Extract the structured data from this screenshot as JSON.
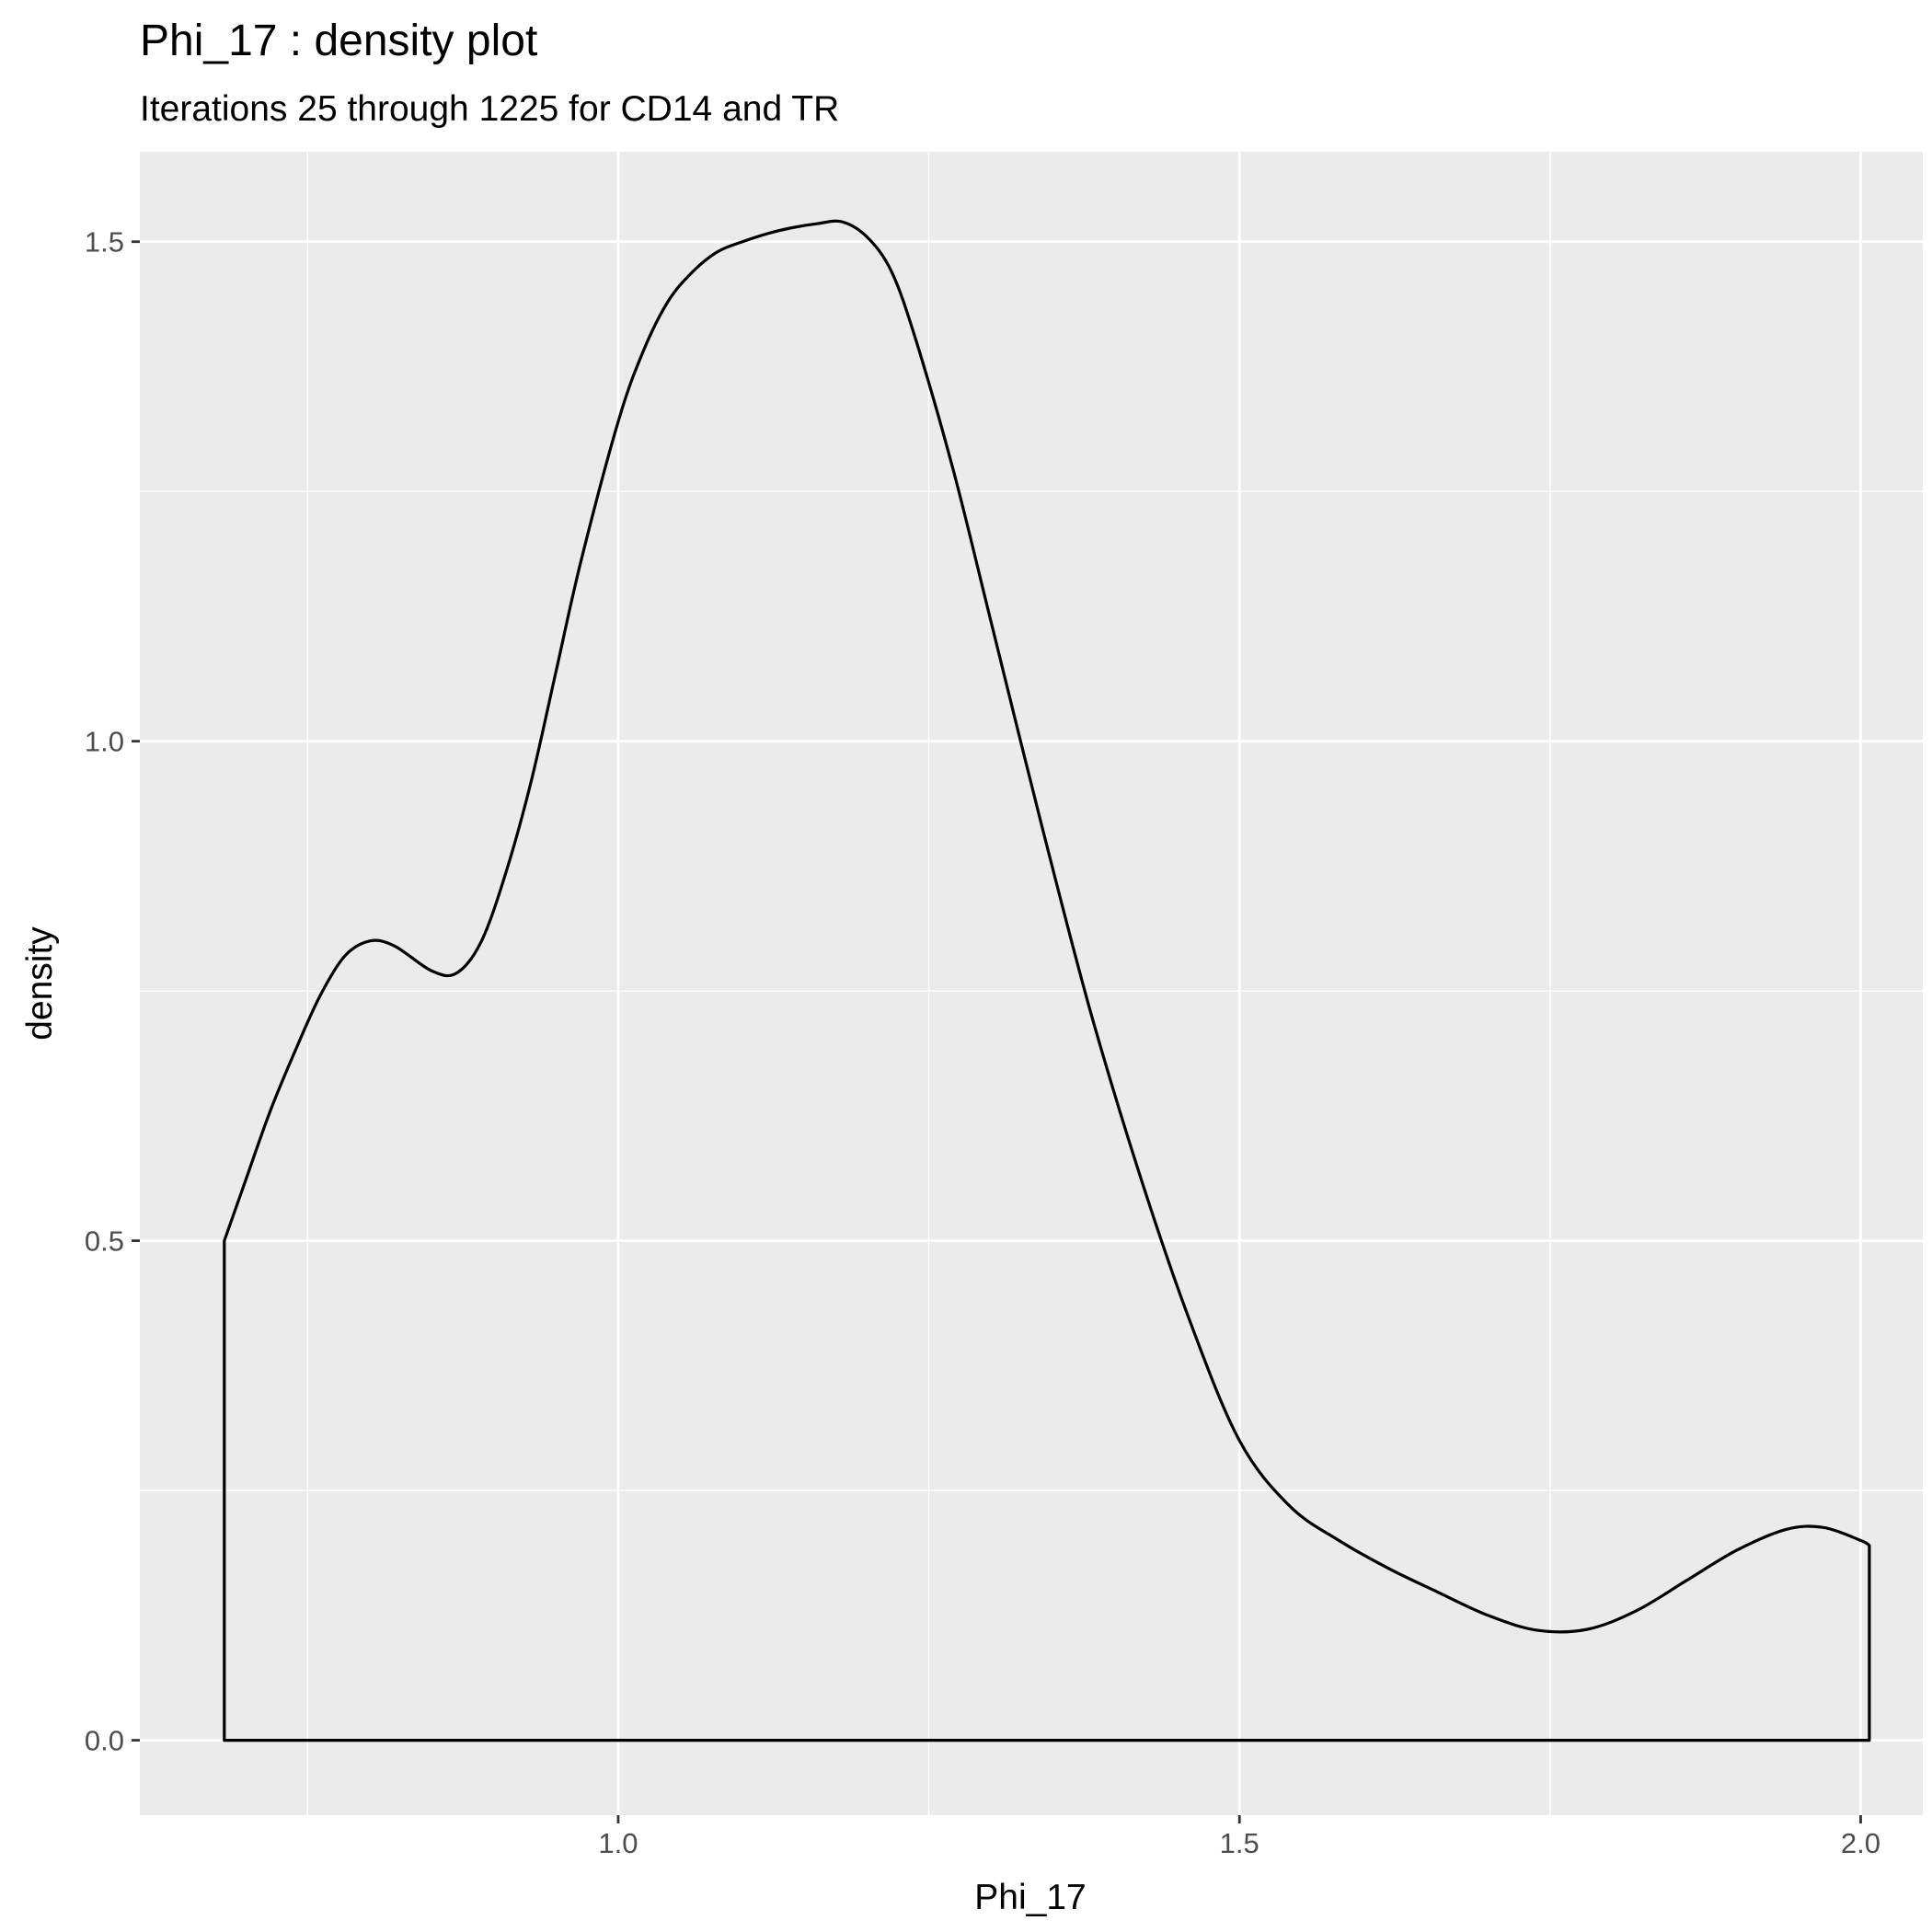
{
  "chart_data": {
    "type": "area",
    "title": "Phi_17 : density plot",
    "subtitle": "Iterations 25 through 1225 for CD14 and TR",
    "xlabel": "Phi_17",
    "ylabel": "density",
    "xlim": [
      0.615,
      2.05
    ],
    "ylim": [
      -0.075,
      1.59
    ],
    "x_ticks": [
      1.0,
      1.5,
      2.0
    ],
    "x_tick_labels": [
      "1.0",
      "1.5",
      "2.0"
    ],
    "y_ticks": [
      0.0,
      0.5,
      1.0,
      1.5
    ],
    "y_tick_labels": [
      "0.0",
      "0.5",
      "1.0",
      "1.5"
    ],
    "x_minor_ticks": [
      0.75,
      1.25,
      1.75
    ],
    "y_minor_ticks": [
      0.25,
      0.75,
      1.25
    ],
    "grid": true,
    "colors": {
      "panel": "#EBEBEB",
      "grid": "#FFFFFF",
      "line": "#000000",
      "fill": "none",
      "tick": "#333333"
    },
    "series": [
      {
        "x": [
          0.683,
          0.7,
          0.72,
          0.74,
          0.76,
          0.78,
          0.8,
          0.82,
          0.85,
          0.87,
          0.89,
          0.91,
          0.93,
          0.95,
          0.97,
          1.0,
          1.02,
          1.04,
          1.06,
          1.08,
          1.1,
          1.12,
          1.14,
          1.16,
          1.18,
          1.2,
          1.22,
          1.24,
          1.27,
          1.3,
          1.34,
          1.38,
          1.42,
          1.46,
          1.5,
          1.54,
          1.58,
          1.62,
          1.66,
          1.7,
          1.74,
          1.78,
          1.82,
          1.86,
          1.9,
          1.94,
          1.97,
          2.0,
          2.007
        ],
        "y": [
          0.5,
          0.56,
          0.63,
          0.69,
          0.745,
          0.785,
          0.8,
          0.795,
          0.77,
          0.768,
          0.8,
          0.87,
          0.96,
          1.07,
          1.18,
          1.32,
          1.39,
          1.44,
          1.47,
          1.49,
          1.5,
          1.508,
          1.514,
          1.518,
          1.52,
          1.505,
          1.47,
          1.4,
          1.27,
          1.12,
          0.92,
          0.73,
          0.565,
          0.42,
          0.3,
          0.235,
          0.2,
          0.172,
          0.148,
          0.125,
          0.11,
          0.111,
          0.13,
          0.16,
          0.19,
          0.211,
          0.213,
          0.2,
          0.195
        ]
      }
    ]
  }
}
